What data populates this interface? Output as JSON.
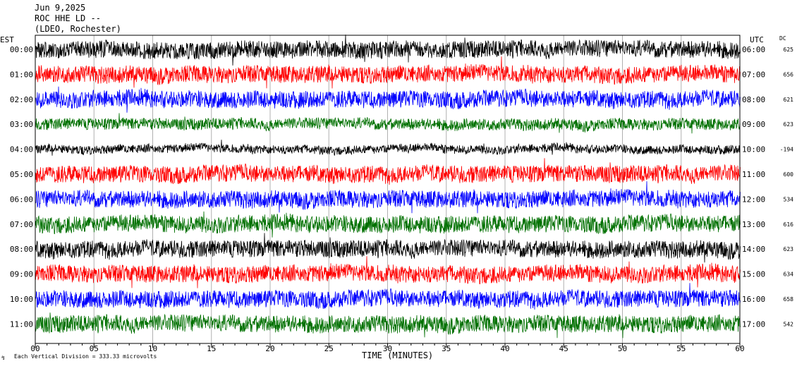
{
  "header": {
    "date": "Jun 9,2025",
    "station": "ROC HHE LD --",
    "network": "(LDEO, Rochester)"
  },
  "chart_data": {
    "type": "line",
    "title": "",
    "left_axis_label": "EST",
    "right_axis_label": "UTC",
    "dc_label": "DC",
    "xlabel": "TIME (MINUTES)",
    "xlim": [
      0,
      60
    ],
    "x_ticks": [
      "00",
      "05",
      "10",
      "15",
      "20",
      "25",
      "30",
      "35",
      "40",
      "45",
      "50",
      "55",
      "60"
    ],
    "footer_note": "Each Vertical Division =  333.33 microvolts",
    "grid": true,
    "traces": [
      {
        "est": "00:00",
        "utc": "06:00",
        "dc": "625",
        "color": "#000000"
      },
      {
        "est": "01:00",
        "utc": "07:00",
        "dc": "656",
        "color": "#ff0000"
      },
      {
        "est": "02:00",
        "utc": "08:00",
        "dc": "621",
        "color": "#0000ff"
      },
      {
        "est": "03:00",
        "utc": "09:00",
        "dc": "623",
        "color": "#007000"
      },
      {
        "est": "04:00",
        "utc": "10:00",
        "dc": "-194",
        "color": "#000000"
      },
      {
        "est": "05:00",
        "utc": "11:00",
        "dc": "600",
        "color": "#ff0000"
      },
      {
        "est": "06:00",
        "utc": "12:00",
        "dc": "534",
        "color": "#0000ff"
      },
      {
        "est": "07:00",
        "utc": "13:00",
        "dc": "616",
        "color": "#007000"
      },
      {
        "est": "08:00",
        "utc": "14:00",
        "dc": "623",
        "color": "#000000"
      },
      {
        "est": "09:00",
        "utc": "15:00",
        "dc": "634",
        "color": "#ff0000"
      },
      {
        "est": "10:00",
        "utc": "16:00",
        "dc": "658",
        "color": "#0000ff"
      },
      {
        "est": "11:00",
        "utc": "17:00",
        "dc": "542",
        "color": "#007000"
      }
    ]
  }
}
